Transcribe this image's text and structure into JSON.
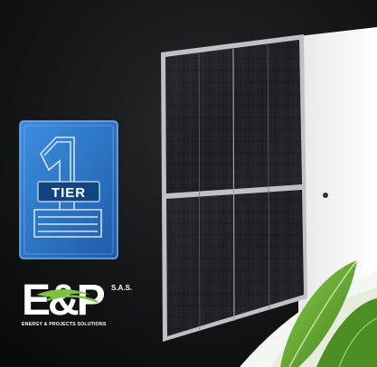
{
  "badge": {
    "numeral": "1",
    "label": "TIER"
  },
  "logo": {
    "letters": "E&P",
    "suffix": "S.A.S.",
    "tagline": "ENERGY & PROJECTS SOLUTIONS"
  },
  "colors": {
    "background_dark": "#111214",
    "badge_blue": "#2f76c9",
    "panel_frame": "#c9c9cb",
    "cell_dark": "#1a1c20",
    "leaf_green": "#5fa52c",
    "swoosh_green": "#7cc242"
  },
  "icons": [
    "tier-one-badge-icon",
    "eandp-logo-icon",
    "solar-panel-icon",
    "green-leaves-icon"
  ]
}
